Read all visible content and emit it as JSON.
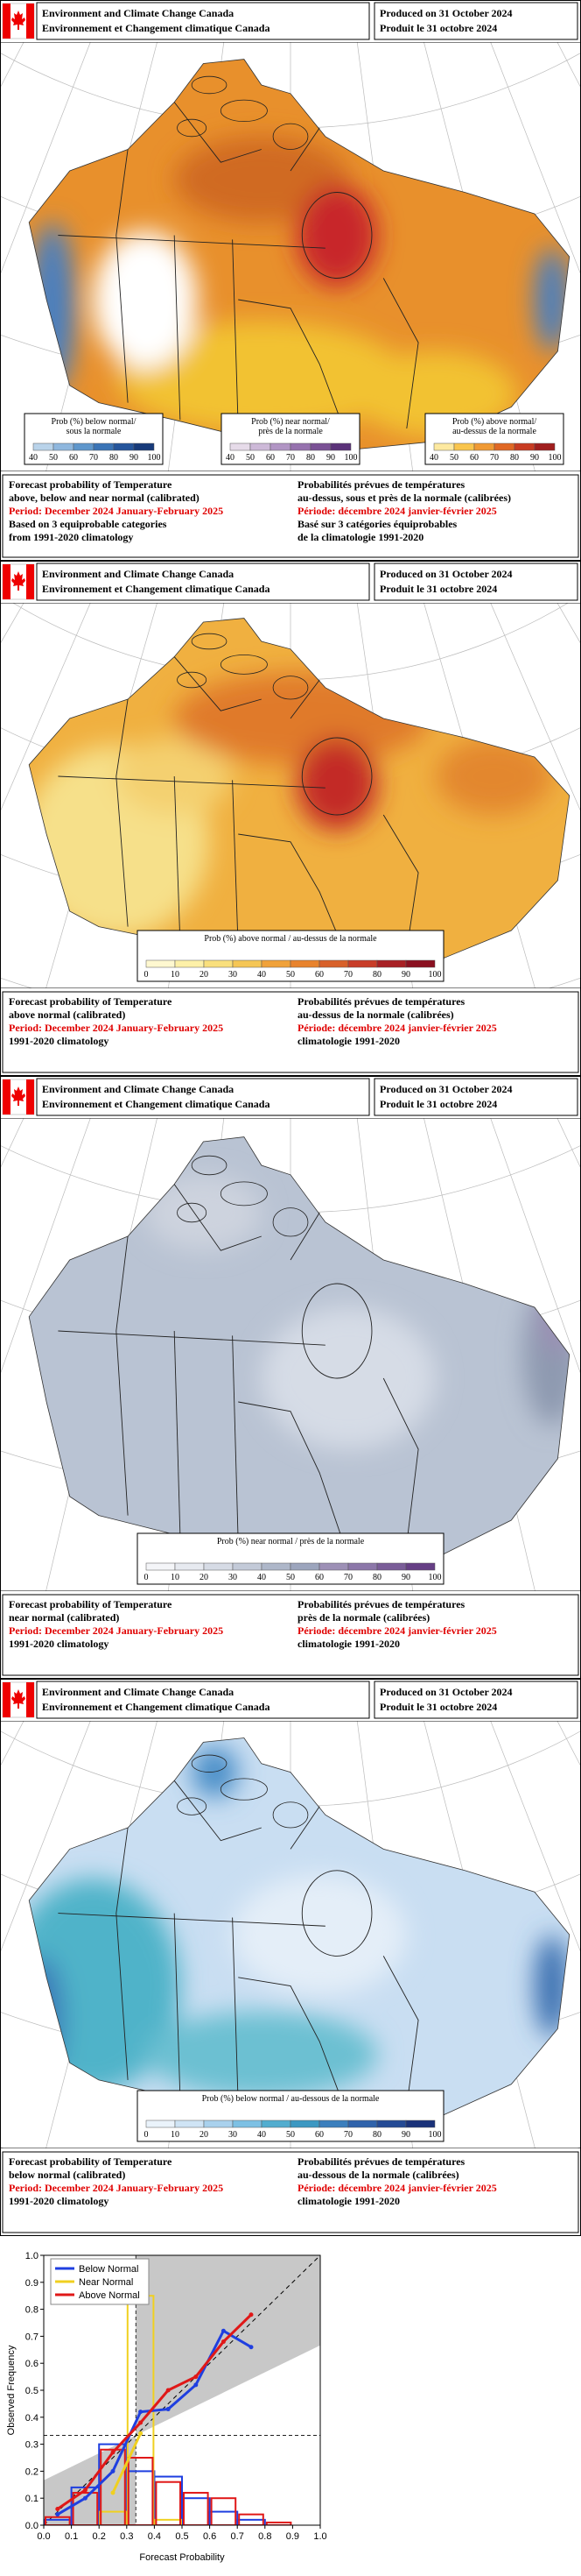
{
  "header": {
    "org_en": "Environment and Climate Change Canada",
    "org_fr": "Environnement et Changement climatique Canada",
    "produced_en": "Produced on 31 October 2024",
    "produced_fr": "Produit le 31 octobre 2024"
  },
  "panels": [
    {
      "legends": [
        {
          "title": [
            "Prob (%) below normal/",
            "sous la normale"
          ],
          "ticks": [
            "40",
            "50",
            "60",
            "70",
            "80",
            "90",
            "100"
          ]
        },
        {
          "title": [
            "Prob (%) near normal/",
            "près de la normale"
          ],
          "ticks": [
            "40",
            "50",
            "60",
            "70",
            "80",
            "90",
            "100"
          ]
        },
        {
          "title": [
            "Prob (%) above normal/",
            "au-dessus de la normale"
          ],
          "ticks": [
            "40",
            "50",
            "60",
            "70",
            "80",
            "90",
            "100"
          ]
        }
      ],
      "footer": {
        "left": [
          "Forecast probability of Temperature",
          "above, below and near normal (calibrated)",
          "Period: December 2024 January-February 2025",
          "Based on 3 equiprobable categories",
          "from 1991-2020 climatology"
        ],
        "right": [
          "Probabilités prévues de températures",
          "au-dessus, sous et près de la normale (calibrées)",
          "Période: décembre 2024 janvier-février 2025",
          "Basé sur 3 catégories équiprobables",
          "de la climatologie 1991-2020"
        ]
      }
    },
    {
      "legends": [
        {
          "title": [
            "Prob (%) above normal / au-dessus de la normale"
          ],
          "ticks": [
            "0",
            "10",
            "20",
            "30",
            "40",
            "50",
            "60",
            "70",
            "80",
            "90",
            "100"
          ]
        }
      ],
      "footer": {
        "left": [
          "Forecast probability of Temperature",
          "above normal (calibrated)",
          "Period: December 2024 January-February 2025",
          "1991-2020 climatology"
        ],
        "right": [
          "Probabilités prévues de températures",
          "au-dessus de la normale (calibrées)",
          "Période: décembre 2024 janvier-février 2025",
          "climatologie 1991-2020"
        ]
      }
    },
    {
      "legends": [
        {
          "title": [
            "Prob (%) near normal / près de la normale"
          ],
          "ticks": [
            "0",
            "10",
            "20",
            "30",
            "40",
            "50",
            "60",
            "70",
            "80",
            "90",
            "100"
          ]
        }
      ],
      "footer": {
        "left": [
          "Forecast probability of Temperature",
          "near normal (calibrated)",
          "Period: December 2024 January-February 2025",
          "1991-2020 climatology"
        ],
        "right": [
          "Probabilités prévues de températures",
          "près de la normale (calibrées)",
          "Période: décembre 2024 janvier-février 2025",
          "climatologie 1991-2020"
        ]
      }
    },
    {
      "legends": [
        {
          "title": [
            "Prob (%) below normal / au-dessous de la normale"
          ],
          "ticks": [
            "0",
            "10",
            "20",
            "30",
            "40",
            "50",
            "60",
            "70",
            "80",
            "90",
            "100"
          ]
        }
      ],
      "footer": {
        "left": [
          "Forecast probability of Temperature",
          "below normal (calibrated)",
          "Period: December 2024 January-February 2025",
          "1991-2020 climatology"
        ],
        "right": [
          "Probabilités prévues de températures",
          "au-dessous de la normale (calibrées)",
          "Période: décembre 2024 janvier-février 2025",
          "climatologie 1991-2020"
        ]
      }
    }
  ],
  "chart_data": {
    "type": "reliability",
    "x_label": "Forecast Probability",
    "y_label": "Observed Frequency",
    "xlim": [
      0,
      1
    ],
    "ylim": [
      0,
      1
    ],
    "xticks": [
      {
        "value": 0,
        "label": "0.0"
      },
      0.1,
      0.2,
      0.3,
      0.4,
      0.5,
      0.6,
      0.7,
      0.8,
      0.9,
      {
        "value": 1,
        "label": "1.0"
      }
    ],
    "yticks": [
      {
        "value": 0,
        "label": "0.0"
      },
      0.1,
      0.2,
      0.3,
      0.4,
      0.5,
      0.6,
      0.7,
      0.8,
      0.9,
      {
        "value": 1,
        "label": "1.0"
      }
    ],
    "climatology": 0.333,
    "x": [
      0.05,
      0.15,
      0.25,
      0.35,
      0.45,
      0.55,
      0.65,
      0.75,
      0.85,
      0.95
    ],
    "bins": [
      0,
      0.1,
      0.2,
      0.3,
      0.4,
      0.5,
      0.6,
      0.7,
      0.8,
      0.9,
      1.0
    ],
    "series": [
      {
        "name": "Below Normal",
        "color": "#1f3fe0",
        "values": [
          0.04,
          0.1,
          0.2,
          0.42,
          0.43,
          0.52,
          0.72,
          0.66,
          null,
          null
        ],
        "histogram": [
          0.02,
          0.14,
          0.3,
          0.2,
          0.18,
          0.1,
          0.05,
          0.02,
          0,
          0
        ]
      },
      {
        "name": "Near Normal",
        "color": "#f0d020",
        "values": [
          null,
          null,
          0.12,
          0.34,
          null,
          null,
          null,
          null,
          null,
          null
        ],
        "histogram": [
          0,
          0,
          0.05,
          0.85,
          0.02,
          0,
          0,
          0,
          0,
          0
        ]
      },
      {
        "name": "Above Normal",
        "color": "#e01818",
        "values": [
          0.06,
          0.13,
          0.27,
          0.38,
          0.5,
          0.55,
          0.68,
          0.78,
          null,
          null
        ],
        "histogram": [
          0.03,
          0.12,
          0.28,
          0.25,
          0.16,
          0.12,
          0.1,
          0.04,
          0.01,
          0
        ]
      }
    ]
  }
}
